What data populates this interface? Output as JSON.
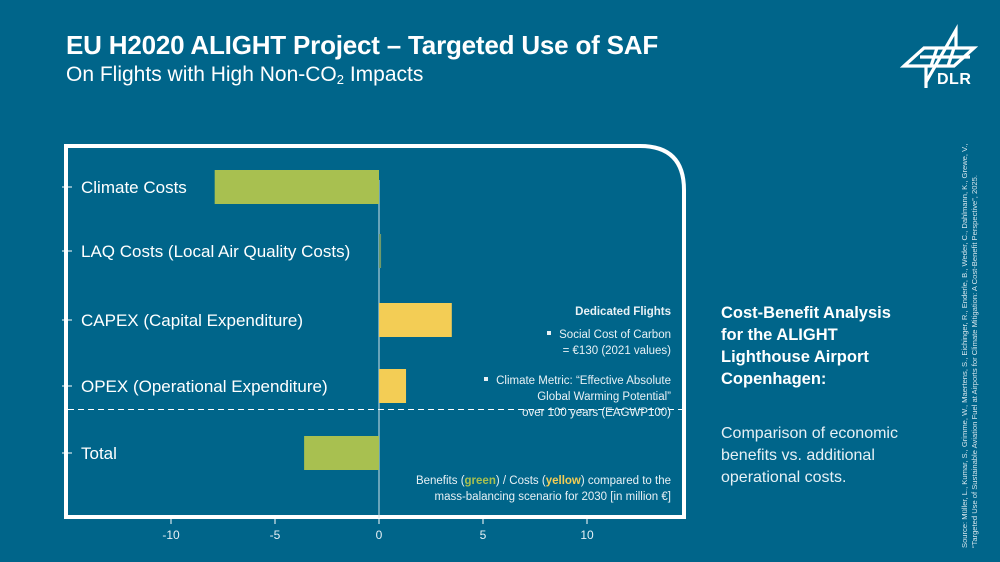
{
  "header": {
    "title": "EU H2020 ALIGHT Project – Targeted Use of SAF",
    "subtitle_main": "On Flights with High Non-CO",
    "subtitle_sub": "2",
    "subtitle_tail": " Impacts"
  },
  "logo": {
    "icon": "dlr-logo-icon",
    "text": "DLR"
  },
  "source": {
    "line1": "Source: Müller, L., Kumar, S., Grimme, W., Maertens, S., Eichinger, R., Enderle, B., Weder, C., Dahlmann, K., Grewe, V.,",
    "line2": "“Targeted Use of Sustainable Aviation Fuel at Airports for Climate Mitigation: A Cost-Benefit Perspective”, 2025."
  },
  "notes": {
    "heading": "Dedicated Flights",
    "scc_line1": "Social Cost of Carbon",
    "scc_line2": "= €130 (2021 values)",
    "metric_line1": "Climate Metric: “Effective Absolute",
    "metric_line2": "Global Warming Potential”",
    "metric_line3": "over 100 years (EAGWP100)",
    "legend_pre": "Benefits (",
    "legend_green": "green",
    "legend_mid": ") / Costs (",
    "legend_yellow": "yellow",
    "legend_post": ") compared to the",
    "legend_line2": "mass-balancing  scenario for 2030 [in million €]"
  },
  "side_panel": {
    "heading": "Cost-Benefit Analysis for the ALIGHT Lighthouse Airport Copenhagen:",
    "body": "Comparison of economic benefits vs. additional operational costs."
  },
  "colors": {
    "background": "#00658A",
    "benefit": "#A8C050",
    "cost": "#F3CD55",
    "frame": "#ffffff"
  },
  "chart_data": {
    "type": "bar",
    "orientation": "horizontal",
    "title": "",
    "xlabel": "Benefits (green) / Costs (yellow) compared to the mass-balancing scenario for 2030 [in million €]",
    "ylabel": "",
    "xlim": [
      -14,
      14
    ],
    "xticks": [
      -10,
      -5,
      0,
      5,
      10
    ],
    "xtick_labels": [
      "-10",
      "-5",
      "0",
      "5",
      "10"
    ],
    "grid": false,
    "categories": [
      "Climate Costs",
      "LAQ Costs (Local Air Quality Costs)",
      "CAPEX (Capital Expenditure)",
      "OPEX (Operational Expenditure)",
      "Total"
    ],
    "values": [
      -7.9,
      0.1,
      3.5,
      1.3,
      -3.6
    ],
    "kinds": [
      "benefit",
      "benefit",
      "cost",
      "cost",
      "benefit"
    ],
    "separator_before": "Total"
  }
}
